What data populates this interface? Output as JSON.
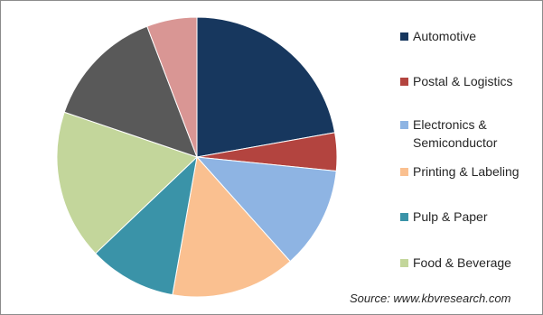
{
  "chart_data": {
    "type": "pie",
    "categories": [
      "Automotive",
      "Postal & Logistics",
      "Electronics & Semiconductor",
      "Printing & Labeling",
      "Pulp & Paper",
      "Food & Beverage",
      null,
      null
    ],
    "values": [
      22.2,
      4.4,
      11.8,
      14.4,
      10.1,
      17.3,
      14.0,
      5.8
    ],
    "colors": [
      "#17375e",
      "#b3443f",
      "#8eb4e3",
      "#fac090",
      "#3a93a8",
      "#c3d69b",
      "#595959",
      "#d99694"
    ],
    "source": "Source: www.kbvresearch.com"
  }
}
